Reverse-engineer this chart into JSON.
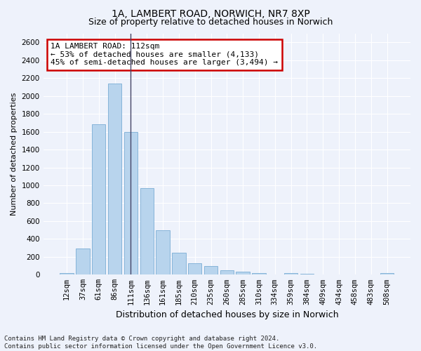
{
  "title_line1": "1A, LAMBERT ROAD, NORWICH, NR7 8XP",
  "title_line2": "Size of property relative to detached houses in Norwich",
  "xlabel": "Distribution of detached houses by size in Norwich",
  "ylabel": "Number of detached properties",
  "categories": [
    "12sqm",
    "37sqm",
    "61sqm",
    "86sqm",
    "111sqm",
    "136sqm",
    "161sqm",
    "185sqm",
    "210sqm",
    "235sqm",
    "260sqm",
    "285sqm",
    "310sqm",
    "334sqm",
    "359sqm",
    "384sqm",
    "409sqm",
    "434sqm",
    "458sqm",
    "483sqm",
    "508sqm"
  ],
  "values": [
    20,
    295,
    1680,
    2140,
    1600,
    970,
    495,
    245,
    130,
    100,
    50,
    30,
    20,
    0,
    15,
    10,
    5,
    5,
    0,
    0,
    15
  ],
  "bar_color": "#b8d4ed",
  "bar_edge_color": "#7aadd4",
  "vline_x": 4,
  "vline_color": "#444466",
  "ylim": [
    0,
    2700
  ],
  "yticks": [
    0,
    200,
    400,
    600,
    800,
    1000,
    1200,
    1400,
    1600,
    1800,
    2000,
    2200,
    2400,
    2600
  ],
  "annotation_text_line1": "1A LAMBERT ROAD: 112sqm",
  "annotation_text_line2": "← 53% of detached houses are smaller (4,133)",
  "annotation_text_line3": "45% of semi-detached houses are larger (3,494) →",
  "annotation_box_facecolor": "#ffffff",
  "annotation_box_edgecolor": "#cc0000",
  "footer_line1": "Contains HM Land Registry data © Crown copyright and database right 2024.",
  "footer_line2": "Contains public sector information licensed under the Open Government Licence v3.0.",
  "bg_color": "#eef2fb",
  "grid_color": "#ffffff",
  "title_fontsize": 10,
  "subtitle_fontsize": 9,
  "ylabel_fontsize": 8,
  "xlabel_fontsize": 9,
  "tick_fontsize": 7.5,
  "annotation_fontsize": 8,
  "footer_fontsize": 6.5
}
